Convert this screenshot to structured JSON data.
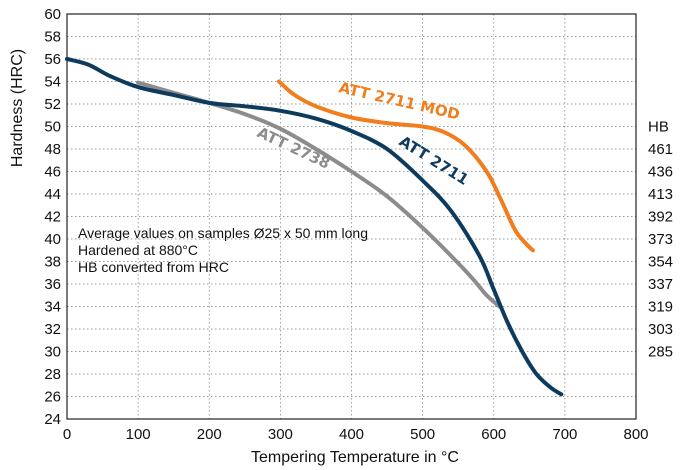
{
  "chart_data": {
    "type": "line",
    "xlabel": "Tempering Temperature in °C",
    "ylabel": "Hardness (HRC)",
    "xlim": [
      0,
      800
    ],
    "ylim": [
      24,
      60
    ],
    "x_ticks": [
      "0",
      "100",
      "200",
      "300",
      "400",
      "500",
      "600",
      "700",
      "800"
    ],
    "y_ticks": [
      "24",
      "26",
      "28",
      "30",
      "32",
      "34",
      "36",
      "38",
      "40",
      "42",
      "44",
      "46",
      "48",
      "50",
      "52",
      "54",
      "56",
      "58",
      "60"
    ],
    "grid": true,
    "hb_scale": {
      "title": "HB",
      "labels": [
        {
          "hrc": 48,
          "hb": "461"
        },
        {
          "hrc": 46,
          "hb": "436"
        },
        {
          "hrc": 44,
          "hb": "413"
        },
        {
          "hrc": 42,
          "hb": "392"
        },
        {
          "hrc": 40,
          "hb": "373"
        },
        {
          "hrc": 38,
          "hb": "354"
        },
        {
          "hrc": 36,
          "hb": "337"
        },
        {
          "hrc": 34,
          "hb": "319"
        },
        {
          "hrc": 32,
          "hb": "303"
        },
        {
          "hrc": 30,
          "hb": "285"
        }
      ]
    },
    "notes": [
      "Average values on samples Ø25 x 50 mm long",
      "Hardened at 880°C",
      "HB converted from HRC"
    ],
    "series": [
      {
        "name": "ATT 2711 MOD",
        "color": "#f07d1e",
        "x": [
          298,
          320,
          350,
          400,
          450,
          500,
          530,
          560,
          590,
          610,
          630,
          645,
          655
        ],
        "y": [
          54.0,
          52.8,
          51.8,
          50.8,
          50.3,
          50.0,
          49.5,
          48.3,
          46.0,
          43.5,
          40.8,
          39.6,
          39.0
        ]
      },
      {
        "name": "ATT 2711",
        "color": "#0d3b5e",
        "x": [
          0,
          30,
          60,
          100,
          150,
          200,
          250,
          300,
          350,
          400,
          450,
          500,
          540,
          580,
          600,
          620,
          640,
          660,
          680,
          695
        ],
        "y": [
          56.0,
          55.5,
          54.5,
          53.5,
          52.8,
          52.1,
          51.8,
          51.4,
          50.7,
          49.6,
          48.0,
          45.2,
          42.5,
          38.5,
          35.5,
          32.5,
          30.0,
          28.0,
          26.8,
          26.2
        ]
      },
      {
        "name": "ATT 2738",
        "color": "#8c8c8c",
        "x": [
          100,
          150,
          200,
          250,
          300,
          350,
          400,
          450,
          500,
          540,
          570,
          590,
          608
        ],
        "y": [
          53.9,
          53.0,
          52.1,
          51.1,
          49.8,
          48.0,
          46.0,
          43.8,
          41.0,
          38.5,
          36.5,
          35.0,
          34.0
        ]
      }
    ]
  }
}
